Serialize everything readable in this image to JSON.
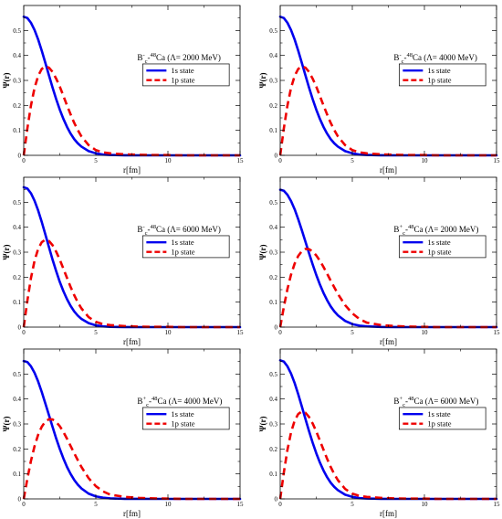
{
  "figure": {
    "background": "#ffffff"
  },
  "chart_data": [
    {
      "type": "line",
      "xlabel": "r[fm]",
      "ylabel": "Ψ(r)",
      "xlim": [
        0,
        15
      ],
      "ylim": [
        0,
        0.6
      ],
      "xticks": [
        "0",
        "5",
        "10",
        "15"
      ],
      "yticks": [
        "0",
        "0.1",
        "0.2",
        "0.3",
        "0.4",
        "0.5"
      ],
      "annotation": {
        "main": "B",
        "sup1": "-",
        "sub": "c",
        "mid": "-",
        "sup2": "48",
        "rest": "Ca (Λ= 2000 MeV)"
      },
      "legend": {
        "position": "right",
        "entries": [
          "1s state",
          "1p state"
        ]
      },
      "series": [
        {
          "name": "1s state",
          "color": "#0000ee",
          "dash": "solid",
          "x": [
            0,
            0.25,
            0.5,
            0.75,
            1,
            1.25,
            1.5,
            1.75,
            2,
            2.25,
            2.5,
            2.75,
            3,
            3.25,
            3.5,
            3.75,
            4,
            4.5,
            5,
            5.5,
            6,
            7,
            8,
            9,
            10,
            11,
            12,
            13,
            14,
            15
          ],
          "y": [
            0.555,
            0.55,
            0.531,
            0.502,
            0.464,
            0.419,
            0.37,
            0.32,
            0.271,
            0.225,
            0.183,
            0.146,
            0.114,
            0.087,
            0.065,
            0.048,
            0.035,
            0.017,
            0.008,
            0.003,
            0.0015,
            0.0002,
            0,
            0,
            0,
            0,
            0,
            0,
            0,
            0
          ]
        },
        {
          "name": "1p state",
          "color": "#ee0000",
          "dash": "dashed",
          "x": [
            0,
            0.25,
            0.5,
            0.75,
            1,
            1.25,
            1.5,
            1.75,
            2,
            2.25,
            2.5,
            2.75,
            3,
            3.25,
            3.5,
            3.75,
            4,
            4.5,
            5,
            5.5,
            6,
            7,
            8,
            9,
            10,
            11,
            12,
            13,
            14,
            15
          ],
          "y": [
            0,
            0.107,
            0.199,
            0.27,
            0.318,
            0.346,
            0.356,
            0.351,
            0.334,
            0.307,
            0.275,
            0.238,
            0.2,
            0.164,
            0.13,
            0.101,
            0.076,
            0.041,
            0.021,
            0.012,
            0.008,
            0.004,
            0.002,
            0.001,
            0.001,
            0,
            0,
            0,
            0,
            0
          ]
        }
      ]
    },
    {
      "type": "line",
      "xlabel": "r[fm]",
      "ylabel": "Ψ(r)",
      "xlim": [
        0,
        15
      ],
      "ylim": [
        0,
        0.6
      ],
      "xticks": [
        "0",
        "5",
        "10",
        "15"
      ],
      "yticks": [
        "0",
        "0.1",
        "0.2",
        "0.3",
        "0.4",
        "0.5"
      ],
      "annotation": {
        "main": "B",
        "sup1": "-",
        "sub": "c",
        "mid": "-",
        "sup2": "48",
        "rest": "Ca (Λ= 4000 MeV)"
      },
      "legend": {
        "position": "right",
        "entries": [
          "1s state",
          "1p state"
        ]
      },
      "series": [
        {
          "name": "1s state",
          "color": "#0000ee",
          "dash": "solid",
          "x": [
            0,
            0.25,
            0.5,
            0.75,
            1,
            1.25,
            1.5,
            1.75,
            2,
            2.25,
            2.5,
            2.75,
            3,
            3.25,
            3.5,
            3.75,
            4,
            4.5,
            5,
            5.5,
            6,
            7,
            8,
            9,
            10,
            11,
            12,
            13,
            14,
            15
          ],
          "y": [
            0.555,
            0.55,
            0.531,
            0.502,
            0.464,
            0.419,
            0.37,
            0.32,
            0.271,
            0.225,
            0.183,
            0.146,
            0.114,
            0.087,
            0.065,
            0.048,
            0.035,
            0.017,
            0.008,
            0.003,
            0.0015,
            0.0002,
            0,
            0,
            0,
            0,
            0,
            0,
            0,
            0
          ]
        },
        {
          "name": "1p state",
          "color": "#ee0000",
          "dash": "dashed",
          "x": [
            0,
            0.25,
            0.5,
            0.75,
            1,
            1.25,
            1.5,
            1.75,
            2,
            2.25,
            2.5,
            2.75,
            3,
            3.25,
            3.5,
            3.75,
            4,
            4.5,
            5,
            5.5,
            6,
            7,
            8,
            9,
            10,
            11,
            12,
            13,
            14,
            15
          ],
          "y": [
            0,
            0.107,
            0.199,
            0.27,
            0.318,
            0.346,
            0.356,
            0.351,
            0.334,
            0.307,
            0.275,
            0.238,
            0.2,
            0.164,
            0.13,
            0.101,
            0.076,
            0.041,
            0.021,
            0.012,
            0.008,
            0.004,
            0.002,
            0.001,
            0.001,
            0,
            0,
            0,
            0,
            0
          ]
        }
      ]
    },
    {
      "type": "line",
      "xlabel": "r[fm]",
      "ylabel": "Ψ(r)",
      "xlim": [
        0,
        15
      ],
      "ylim": [
        0,
        0.6
      ],
      "xticks": [
        "0",
        "5",
        "10",
        "15"
      ],
      "yticks": [
        "0",
        "0.1",
        "0.2",
        "0.3",
        "0.4",
        "0.5"
      ],
      "annotation": {
        "main": "B",
        "sup1": "-",
        "sub": "c",
        "mid": "-",
        "sup2": "48",
        "rest": "Ca (Λ= 6000 MeV)"
      },
      "legend": {
        "position": "right",
        "entries": [
          "1s state",
          "1p state"
        ]
      },
      "series": [
        {
          "name": "1s state",
          "color": "#0000ee",
          "dash": "solid",
          "x": [
            0,
            0.25,
            0.5,
            0.75,
            1,
            1.25,
            1.5,
            1.75,
            2,
            2.25,
            2.5,
            2.75,
            3,
            3.25,
            3.5,
            3.75,
            4,
            4.5,
            5,
            5.5,
            6,
            7,
            8,
            9,
            10,
            11,
            12,
            13,
            14,
            15
          ],
          "y": [
            0.56,
            0.555,
            0.536,
            0.506,
            0.467,
            0.421,
            0.371,
            0.32,
            0.27,
            0.224,
            0.181,
            0.144,
            0.112,
            0.085,
            0.063,
            0.046,
            0.033,
            0.016,
            0.007,
            0.003,
            0.0012,
            0.0002,
            0,
            0,
            0,
            0,
            0,
            0,
            0,
            0
          ]
        },
        {
          "name": "1p state",
          "color": "#ee0000",
          "dash": "dashed",
          "x": [
            0,
            0.25,
            0.5,
            0.75,
            1,
            1.25,
            1.5,
            1.75,
            2,
            2.25,
            2.5,
            2.75,
            3,
            3.25,
            3.5,
            3.75,
            4,
            4.5,
            5,
            5.5,
            6,
            7,
            8,
            9,
            10,
            11,
            12,
            13,
            14,
            15
          ],
          "y": [
            0,
            0.105,
            0.196,
            0.266,
            0.313,
            0.34,
            0.35,
            0.345,
            0.328,
            0.302,
            0.27,
            0.234,
            0.197,
            0.161,
            0.128,
            0.099,
            0.075,
            0.04,
            0.021,
            0.012,
            0.008,
            0.004,
            0.002,
            0.001,
            0.001,
            0,
            0,
            0,
            0,
            0
          ]
        }
      ]
    },
    {
      "type": "line",
      "xlabel": "r[fm]",
      "ylabel": "Ψ(r)",
      "xlim": [
        0,
        15
      ],
      "ylim": [
        0,
        0.6
      ],
      "xticks": [
        "0",
        "5",
        "10",
        "15"
      ],
      "yticks": [
        "0",
        "0.1",
        "0.2",
        "0.3",
        "0.4",
        "0.5"
      ],
      "annotation": {
        "main": "B",
        "sup1": "+",
        "sub": "c",
        "mid": "-",
        "sup2": "48",
        "rest": "Ca (Λ= 2000 MeV)"
      },
      "legend": {
        "position": "right",
        "entries": [
          "1s state",
          "1p state"
        ]
      },
      "series": [
        {
          "name": "1s state",
          "color": "#0000ee",
          "dash": "solid",
          "x": [
            0,
            0.25,
            0.5,
            0.75,
            1,
            1.25,
            1.5,
            1.75,
            2,
            2.25,
            2.5,
            2.75,
            3,
            3.25,
            3.5,
            3.75,
            4,
            4.5,
            5,
            5.5,
            6,
            7,
            8,
            9,
            10,
            11,
            12,
            13,
            14,
            15
          ],
          "y": [
            0.55,
            0.546,
            0.53,
            0.505,
            0.472,
            0.432,
            0.388,
            0.342,
            0.296,
            0.251,
            0.209,
            0.171,
            0.137,
            0.108,
            0.083,
            0.063,
            0.047,
            0.025,
            0.012,
            0.006,
            0.003,
            0.0006,
            0.0001,
            0,
            0,
            0,
            0,
            0,
            0,
            0
          ]
        },
        {
          "name": "1p state",
          "color": "#ee0000",
          "dash": "dashed",
          "x": [
            0,
            0.25,
            0.5,
            0.75,
            1,
            1.25,
            1.5,
            1.75,
            2,
            2.25,
            2.5,
            2.75,
            3,
            3.25,
            3.5,
            3.75,
            4,
            4.5,
            5,
            5.5,
            6,
            7,
            8,
            9,
            10,
            11,
            12,
            13,
            14,
            15
          ],
          "y": [
            0,
            0.08,
            0.152,
            0.21,
            0.254,
            0.285,
            0.304,
            0.313,
            0.312,
            0.303,
            0.287,
            0.266,
            0.241,
            0.214,
            0.186,
            0.159,
            0.133,
            0.088,
            0.055,
            0.032,
            0.018,
            0.008,
            0.004,
            0.002,
            0.001,
            0,
            0,
            0,
            0,
            0
          ]
        }
      ]
    },
    {
      "type": "line",
      "xlabel": "r[fm]",
      "ylabel": "Ψ(r)",
      "xlim": [
        0,
        15
      ],
      "ylim": [
        0,
        0.6
      ],
      "xticks": [
        "0",
        "5",
        "10",
        "15"
      ],
      "yticks": [
        "0",
        "0.1",
        "0.2",
        "0.3",
        "0.4",
        "0.5"
      ],
      "annotation": {
        "main": "B",
        "sup1": "+",
        "sub": "c",
        "mid": "-",
        "sup2": "48",
        "rest": "Ca (Λ= 4000 MeV)"
      },
      "legend": {
        "position": "right",
        "entries": [
          "1s state",
          "1p state"
        ]
      },
      "series": [
        {
          "name": "1s state",
          "color": "#0000ee",
          "dash": "solid",
          "x": [
            0,
            0.25,
            0.5,
            0.75,
            1,
            1.25,
            1.5,
            1.75,
            2,
            2.25,
            2.5,
            2.75,
            3,
            3.25,
            3.5,
            3.75,
            4,
            4.5,
            5,
            5.5,
            6,
            7,
            8,
            9,
            10,
            11,
            12,
            13,
            14,
            15
          ],
          "y": [
            0.552,
            0.548,
            0.531,
            0.505,
            0.47,
            0.428,
            0.382,
            0.335,
            0.288,
            0.242,
            0.2,
            0.162,
            0.128,
            0.1,
            0.076,
            0.057,
            0.042,
            0.021,
            0.01,
            0.005,
            0.002,
            0.0004,
            0.0001,
            0,
            0,
            0,
            0,
            0,
            0,
            0
          ]
        },
        {
          "name": "1p state",
          "color": "#ee0000",
          "dash": "dashed",
          "x": [
            0,
            0.25,
            0.5,
            0.75,
            1,
            1.25,
            1.5,
            1.75,
            2,
            2.25,
            2.5,
            2.75,
            3,
            3.25,
            3.5,
            3.75,
            4,
            4.5,
            5,
            5.5,
            6,
            7,
            8,
            9,
            10,
            11,
            12,
            13,
            14,
            15
          ],
          "y": [
            0,
            0.08,
            0.152,
            0.211,
            0.257,
            0.289,
            0.31,
            0.319,
            0.318,
            0.308,
            0.291,
            0.268,
            0.241,
            0.212,
            0.183,
            0.155,
            0.128,
            0.083,
            0.051,
            0.03,
            0.017,
            0.008,
            0.004,
            0.002,
            0.001,
            0,
            0,
            0,
            0,
            0
          ]
        }
      ]
    },
    {
      "type": "line",
      "xlabel": "r[fm]",
      "ylabel": "Ψ(r)",
      "xlim": [
        0,
        15
      ],
      "ylim": [
        0,
        0.6
      ],
      "xticks": [
        "0",
        "5",
        "10",
        "15"
      ],
      "yticks": [
        "0",
        "0.1",
        "0.2",
        "0.3",
        "0.4",
        "0.5"
      ],
      "annotation": {
        "main": "B",
        "sup1": "+",
        "sub": "c",
        "mid": "-",
        "sup2": "48",
        "rest": "Ca (Λ= 6000 MeV)"
      },
      "legend": {
        "position": "right",
        "entries": [
          "1s state",
          "1p state"
        ]
      },
      "series": [
        {
          "name": "1s state",
          "color": "#0000ee",
          "dash": "solid",
          "x": [
            0,
            0.25,
            0.5,
            0.75,
            1,
            1.25,
            1.5,
            1.75,
            2,
            2.25,
            2.5,
            2.75,
            3,
            3.25,
            3.5,
            3.75,
            4,
            4.5,
            5,
            5.5,
            6,
            7,
            8,
            9,
            10,
            11,
            12,
            13,
            14,
            15
          ],
          "y": [
            0.555,
            0.55,
            0.531,
            0.502,
            0.464,
            0.419,
            0.37,
            0.32,
            0.271,
            0.225,
            0.183,
            0.146,
            0.114,
            0.087,
            0.065,
            0.048,
            0.035,
            0.017,
            0.008,
            0.003,
            0.0015,
            0.0002,
            0,
            0,
            0,
            0,
            0,
            0,
            0,
            0
          ]
        },
        {
          "name": "1p state",
          "color": "#ee0000",
          "dash": "dashed",
          "x": [
            0,
            0.25,
            0.5,
            0.75,
            1,
            1.25,
            1.5,
            1.75,
            2,
            2.25,
            2.5,
            2.75,
            3,
            3.25,
            3.5,
            3.75,
            4,
            4.5,
            5,
            5.5,
            6,
            7,
            8,
            9,
            10,
            11,
            12,
            13,
            14,
            15
          ],
          "y": [
            0,
            0.105,
            0.196,
            0.266,
            0.313,
            0.34,
            0.35,
            0.345,
            0.328,
            0.302,
            0.27,
            0.234,
            0.197,
            0.161,
            0.128,
            0.099,
            0.075,
            0.04,
            0.021,
            0.012,
            0.008,
            0.004,
            0.002,
            0.001,
            0.001,
            0,
            0,
            0,
            0,
            0
          ]
        }
      ]
    }
  ]
}
